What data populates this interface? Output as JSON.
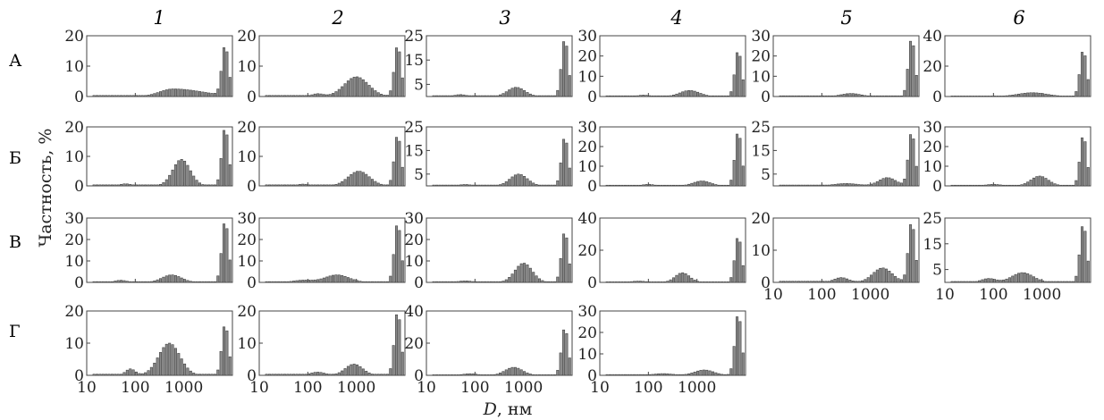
{
  "column_labels": [
    "1",
    "2",
    "3",
    "4",
    "5",
    "6"
  ],
  "row_labels": [
    "А",
    "Б",
    "В",
    "Г"
  ],
  "x_ticks": [
    "10",
    "100",
    "1000"
  ],
  "ylabel": "Частность, %",
  "xlabel_var": "D",
  "xlabel_unit": ", нм",
  "chart_data": {
    "type": "bar",
    "xscale": "log",
    "xlim": [
      10,
      10000
    ],
    "panels": [
      {
        "row": "А",
        "col": "1",
        "yticks": [
          0,
          10,
          20
        ],
        "ylim": [
          0,
          20
        ],
        "peaks": [
          {
            "c": 2.78,
            "w": 0.28,
            "h": 2.5,
            "rw": 0.6
          },
          {
            "c": 3.85,
            "w": 0.07,
            "h": 16.5
          }
        ]
      },
      {
        "row": "А",
        "col": "2",
        "yticks": [
          0,
          10,
          20
        ],
        "ylim": [
          0,
          20
        ],
        "peaks": [
          {
            "c": 2.2,
            "w": 0.12,
            "h": 0.9
          },
          {
            "c": 3.0,
            "w": 0.25,
            "h": 6.5
          },
          {
            "c": 3.85,
            "w": 0.07,
            "h": 17
          }
        ]
      },
      {
        "row": "А",
        "col": "3",
        "yticks": [
          5,
          15,
          25
        ],
        "ylim": [
          0,
          25
        ],
        "peaks": [
          {
            "c": 1.7,
            "w": 0.12,
            "h": 0.8
          },
          {
            "c": 2.85,
            "w": 0.18,
            "h": 3.8
          },
          {
            "c": 3.85,
            "w": 0.07,
            "h": 24
          }
        ]
      },
      {
        "row": "А",
        "col": "4",
        "yticks": [
          0,
          10,
          20,
          30
        ],
        "ylim": [
          0,
          30
        ],
        "peaks": [
          {
            "c": 1.9,
            "w": 0.12,
            "h": 0.7
          },
          {
            "c": 2.85,
            "w": 0.2,
            "h": 3.0
          },
          {
            "c": 3.85,
            "w": 0.07,
            "h": 23
          }
        ]
      },
      {
        "row": "А",
        "col": "5",
        "yticks": [
          0,
          10,
          20,
          30
        ],
        "ylim": [
          0,
          30
        ],
        "peaks": [
          {
            "c": 2.6,
            "w": 0.2,
            "h": 1.5
          },
          {
            "c": 3.85,
            "w": 0.07,
            "h": 29
          }
        ]
      },
      {
        "row": "А",
        "col": "6",
        "yticks": [
          0,
          20,
          40
        ],
        "ylim": [
          0,
          40
        ],
        "peaks": [
          {
            "c": 2.8,
            "w": 0.3,
            "h": 2.5
          },
          {
            "c": 3.85,
            "w": 0.07,
            "h": 31
          }
        ]
      },
      {
        "row": "Б",
        "col": "1",
        "yticks": [
          0,
          10,
          20
        ],
        "ylim": [
          0,
          20
        ],
        "peaks": [
          {
            "c": 1.8,
            "w": 0.12,
            "h": 0.7
          },
          {
            "c": 2.95,
            "w": 0.18,
            "h": 9.0
          },
          {
            "c": 3.85,
            "w": 0.07,
            "h": 20
          }
        ]
      },
      {
        "row": "Б",
        "col": "2",
        "yticks": [
          0,
          10,
          20
        ],
        "ylim": [
          0,
          20
        ],
        "peaks": [
          {
            "c": 1.9,
            "w": 0.12,
            "h": 0.6
          },
          {
            "c": 3.05,
            "w": 0.22,
            "h": 5.0
          },
          {
            "c": 3.85,
            "w": 0.07,
            "h": 17.5
          }
        ]
      },
      {
        "row": "Б",
        "col": "3",
        "yticks": [
          5,
          15,
          25
        ],
        "ylim": [
          0,
          25
        ],
        "peaks": [
          {
            "c": 1.8,
            "w": 0.12,
            "h": 0.6
          },
          {
            "c": 2.9,
            "w": 0.18,
            "h": 5.0
          },
          {
            "c": 3.85,
            "w": 0.07,
            "h": 21
          }
        ]
      },
      {
        "row": "Б",
        "col": "4",
        "yticks": [
          0,
          10,
          20,
          30
        ],
        "ylim": [
          0,
          30
        ],
        "peaks": [
          {
            "c": 2.0,
            "w": 0.12,
            "h": 0.8
          },
          {
            "c": 3.1,
            "w": 0.18,
            "h": 2.5
          },
          {
            "c": 3.85,
            "w": 0.07,
            "h": 28
          }
        ]
      },
      {
        "row": "Б",
        "col": "5",
        "yticks": [
          5,
          15,
          25
        ],
        "ylim": [
          0,
          25
        ],
        "peaks": [
          {
            "c": 2.5,
            "w": 0.25,
            "h": 1.0
          },
          {
            "c": 3.35,
            "w": 0.18,
            "h": 3.5
          },
          {
            "c": 3.85,
            "w": 0.07,
            "h": 23
          }
        ]
      },
      {
        "row": "Б",
        "col": "6",
        "yticks": [
          0,
          10,
          20,
          30
        ],
        "ylim": [
          0,
          30
        ],
        "peaks": [
          {
            "c": 2.0,
            "w": 0.15,
            "h": 0.8
          },
          {
            "c": 2.95,
            "w": 0.18,
            "h": 5.0
          },
          {
            "c": 3.85,
            "w": 0.07,
            "h": 26
          }
        ]
      },
      {
        "row": "В",
        "col": "1",
        "yticks": [
          0,
          10,
          20,
          30
        ],
        "ylim": [
          0,
          30
        ],
        "peaks": [
          {
            "c": 1.7,
            "w": 0.12,
            "h": 1.0
          },
          {
            "c": 2.75,
            "w": 0.2,
            "h": 3.5
          },
          {
            "c": 3.85,
            "w": 0.07,
            "h": 29
          }
        ]
      },
      {
        "row": "В",
        "col": "2",
        "yticks": [
          0,
          10,
          20,
          30
        ],
        "ylim": [
          0,
          30
        ],
        "peaks": [
          {
            "c": 1.9,
            "w": 0.2,
            "h": 1.0
          },
          {
            "c": 2.6,
            "w": 0.25,
            "h": 3.5
          },
          {
            "c": 3.85,
            "w": 0.07,
            "h": 28
          }
        ]
      },
      {
        "row": "В",
        "col": "3",
        "yticks": [
          0,
          10,
          20,
          30
        ],
        "ylim": [
          0,
          30
        ],
        "peaks": [
          {
            "c": 1.8,
            "w": 0.15,
            "h": 0.7
          },
          {
            "c": 3.0,
            "w": 0.18,
            "h": 9.0
          },
          {
            "c": 3.85,
            "w": 0.07,
            "h": 24
          }
        ]
      },
      {
        "row": "В",
        "col": "4",
        "yticks": [
          0,
          20,
          40
        ],
        "ylim": [
          0,
          40
        ],
        "peaks": [
          {
            "c": 1.8,
            "w": 0.15,
            "h": 0.8
          },
          {
            "c": 2.7,
            "w": 0.15,
            "h": 6.0
          },
          {
            "c": 3.85,
            "w": 0.07,
            "h": 29
          }
        ]
      },
      {
        "row": "В",
        "col": "5",
        "yticks": [
          0,
          10,
          20
        ],
        "ylim": [
          0,
          20
        ],
        "peaks": [
          {
            "c": 2.4,
            "w": 0.15,
            "h": 1.5
          },
          {
            "c": 3.25,
            "w": 0.2,
            "h": 4.5
          },
          {
            "c": 3.85,
            "w": 0.07,
            "h": 19
          }
        ]
      },
      {
        "row": "В",
        "col": "6",
        "yticks": [
          5,
          15,
          25
        ],
        "ylim": [
          0,
          25
        ],
        "peaks": [
          {
            "c": 1.9,
            "w": 0.15,
            "h": 1.5
          },
          {
            "c": 2.6,
            "w": 0.22,
            "h": 3.8
          },
          {
            "c": 3.85,
            "w": 0.07,
            "h": 23
          }
        ]
      },
      {
        "row": "Г",
        "col": "1",
        "yticks": [
          0,
          10,
          20
        ],
        "ylim": [
          0,
          20
        ],
        "peaks": [
          {
            "c": 1.9,
            "w": 0.1,
            "h": 2.0
          },
          {
            "c": 2.7,
            "w": 0.22,
            "h": 10.0
          },
          {
            "c": 3.85,
            "w": 0.07,
            "h": 16
          }
        ]
      },
      {
        "row": "Г",
        "col": "2",
        "yticks": [
          0,
          10,
          20
        ],
        "ylim": [
          0,
          20
        ],
        "peaks": [
          {
            "c": 2.2,
            "w": 0.15,
            "h": 1.0
          },
          {
            "c": 2.95,
            "w": 0.18,
            "h": 3.5
          },
          {
            "c": 3.85,
            "w": 0.07,
            "h": 20
          }
        ]
      },
      {
        "row": "Г",
        "col": "3",
        "yticks": [
          0,
          20,
          40
        ],
        "ylim": [
          0,
          40
        ],
        "peaks": [
          {
            "c": 1.9,
            "w": 0.15,
            "h": 1.0
          },
          {
            "c": 2.8,
            "w": 0.18,
            "h": 5.0
          },
          {
            "c": 3.85,
            "w": 0.07,
            "h": 30
          }
        ]
      },
      {
        "row": "Г",
        "col": "4",
        "yticks": [
          0,
          10,
          20,
          30
        ],
        "ylim": [
          0,
          30
        ],
        "peaks": [
          {
            "c": 2.3,
            "w": 0.2,
            "h": 0.8
          },
          {
            "c": 3.15,
            "w": 0.2,
            "h": 2.5
          },
          {
            "c": 3.85,
            "w": 0.07,
            "h": 29
          }
        ]
      }
    ]
  }
}
